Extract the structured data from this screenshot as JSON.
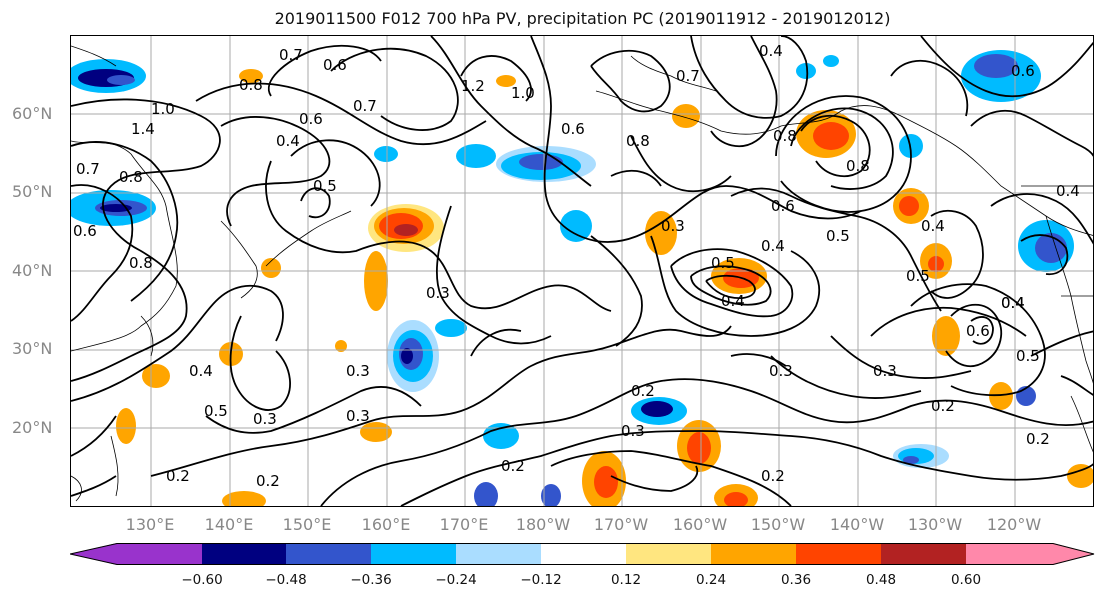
{
  "title": "2019011500 F012 700 hPa PV, precipitation PC (2019011912 - 2019012012)",
  "lat_labels": [
    "60°N",
    "50°N",
    "40°N",
    "30°N",
    "20°N"
  ],
  "lon_labels": [
    "130°E",
    "140°E",
    "150°E",
    "160°E",
    "170°E",
    "180°W",
    "170°W",
    "160°W",
    "150°W",
    "140°W",
    "130°W",
    "120°W"
  ],
  "colorbar": {
    "ticks": [
      "−0.60",
      "−0.48",
      "−0.36",
      "−0.24",
      "−0.12",
      "0.12",
      "0.24",
      "0.36",
      "0.48",
      "0.60"
    ],
    "colors": [
      "#9933cc",
      "#000080",
      "#3355cc",
      "#00bbff",
      "#aaddff",
      "#ffffff",
      "#ffe680",
      "#ffa500",
      "#ff4400",
      "#b22222",
      "#ff88aa"
    ]
  },
  "contour_labels": [
    {
      "text": "0.7"
    },
    {
      "text": "0.6"
    },
    {
      "text": "0.8"
    },
    {
      "text": "1.0"
    },
    {
      "text": "1.4"
    },
    {
      "text": "0.7"
    },
    {
      "text": "0.6"
    },
    {
      "text": "0.4"
    },
    {
      "text": "0.8"
    },
    {
      "text": "0.7"
    },
    {
      "text": "0.6"
    },
    {
      "text": "0.8"
    },
    {
      "text": "0.5"
    },
    {
      "text": "1.2"
    },
    {
      "text": "1.0"
    },
    {
      "text": "0.6"
    },
    {
      "text": "0.8"
    },
    {
      "text": "0.7"
    },
    {
      "text": "0.4"
    },
    {
      "text": "0.8"
    },
    {
      "text": "0.6"
    },
    {
      "text": "0.8"
    },
    {
      "text": "0.6"
    },
    {
      "text": "0.4"
    },
    {
      "text": "0.5"
    },
    {
      "text": "0.3"
    },
    {
      "text": "0.3"
    },
    {
      "text": "0.4"
    },
    {
      "text": "0.4"
    },
    {
      "text": "0.5"
    },
    {
      "text": "0.3"
    },
    {
      "text": "0.3"
    },
    {
      "text": "0.4"
    },
    {
      "text": "0.3"
    },
    {
      "text": "0.5"
    },
    {
      "text": "0.5"
    },
    {
      "text": "0.6"
    },
    {
      "text": "0.4"
    },
    {
      "text": "0.3"
    },
    {
      "text": "0.2"
    },
    {
      "text": "0.3"
    },
    {
      "text": "0.2"
    },
    {
      "text": "0.2"
    },
    {
      "text": "0.3"
    },
    {
      "text": "0.2"
    },
    {
      "text": "0.2"
    },
    {
      "text": "0.2"
    },
    {
      "text": "0.4"
    },
    {
      "text": "0.5"
    },
    {
      "text": "0.4"
    },
    {
      "text": "0.2"
    }
  ]
}
